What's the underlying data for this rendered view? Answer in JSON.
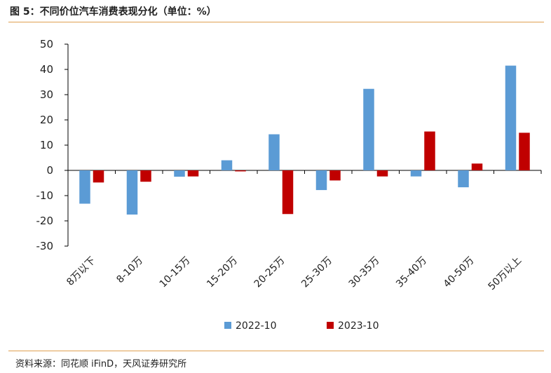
{
  "header": {
    "title": "图 5：不同价位汽车消费表现分化（单位：%）"
  },
  "footer": {
    "source": "资料来源：同花顺 iFinD，天风证券研究所"
  },
  "chart_data": {
    "type": "bar",
    "title": "图 5：不同价位汽车消费表现分化（单位：%）",
    "categories": [
      "8万以下",
      "8-10万",
      "10-15万",
      "15-20万",
      "20-25万",
      "25-30万",
      "30-35万",
      "35-40万",
      "40-50万",
      "50万以上"
    ],
    "series": [
      {
        "name": "2022-10",
        "color": "#5b9bd5",
        "values": [
          -13.2,
          -17.5,
          -2.5,
          4.0,
          14.3,
          -7.8,
          32.3,
          -2.4,
          -6.7,
          41.5
        ]
      },
      {
        "name": "2023-10",
        "color": "#c00000",
        "values": [
          -4.8,
          -4.5,
          -2.4,
          -0.4,
          -17.3,
          -4.0,
          -2.4,
          15.4,
          2.7,
          14.9
        ]
      }
    ],
    "yticks": [
      50,
      40,
      30,
      20,
      10,
      0,
      -10,
      -20,
      -30
    ],
    "ylim": [
      -30,
      50
    ],
    "legend_position": "bottom",
    "grid": false
  }
}
